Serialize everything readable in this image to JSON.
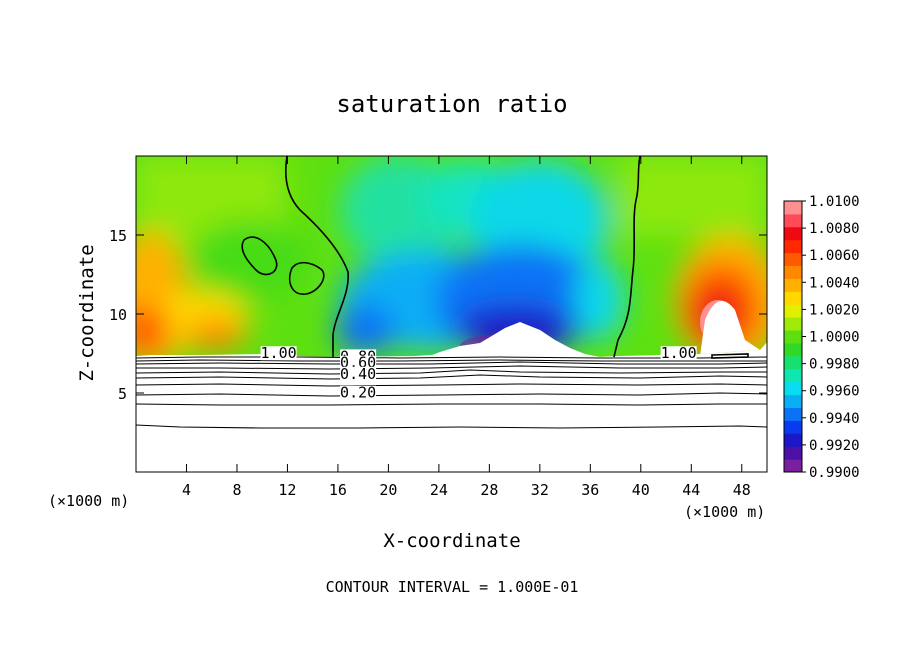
{
  "chart_data": {
    "type": "heatmap",
    "title": "saturation ratio",
    "xlabel": "X-coordinate",
    "ylabel": "Z-coordinate",
    "x_unit_left": "(×1000 m)",
    "x_unit_right": "(×1000 m)",
    "footer": "CONTOUR INTERVAL = 1.000E-01",
    "xlim": [
      0,
      50
    ],
    "ylim": [
      0,
      20
    ],
    "x_ticks": [
      4,
      8,
      12,
      16,
      20,
      24,
      28,
      32,
      36,
      40,
      44,
      48
    ],
    "y_ticks": [
      5,
      10,
      15
    ],
    "colorbar": {
      "min": 0.99,
      "max": 1.01,
      "labels": [
        "1.0100",
        "1.0080",
        "1.0060",
        "1.0040",
        "1.0020",
        "1.0000",
        "0.9980",
        "0.9960",
        "0.9940",
        "0.9920",
        "0.9900"
      ],
      "colors": [
        "#7a1fa0",
        "#4a10a8",
        "#1a18c8",
        "#0a3aee",
        "#0a72f5",
        "#0aaef5",
        "#08dcee",
        "#10e6b0",
        "#18e070",
        "#30d828",
        "#5ee010",
        "#a0ea08",
        "#e0f000",
        "#ffd800",
        "#ffb000",
        "#ff8800",
        "#ff5a00",
        "#ff2800",
        "#ee0a10",
        "#ff4a58",
        "#ff9090"
      ]
    },
    "contour_labels": [
      {
        "text": "1.00",
        "x": 11.3,
        "y": 7.2
      },
      {
        "text": "0.80",
        "x": 17.6,
        "y": 7.0
      },
      {
        "text": "0.60",
        "x": 17.6,
        "y": 6.6
      },
      {
        "text": "0.40",
        "x": 17.6,
        "y": 5.9
      },
      {
        "text": "0.20",
        "x": 17.6,
        "y": 4.7
      },
      {
        "text": "1.00",
        "x": 43.0,
        "y": 7.2
      }
    ]
  }
}
